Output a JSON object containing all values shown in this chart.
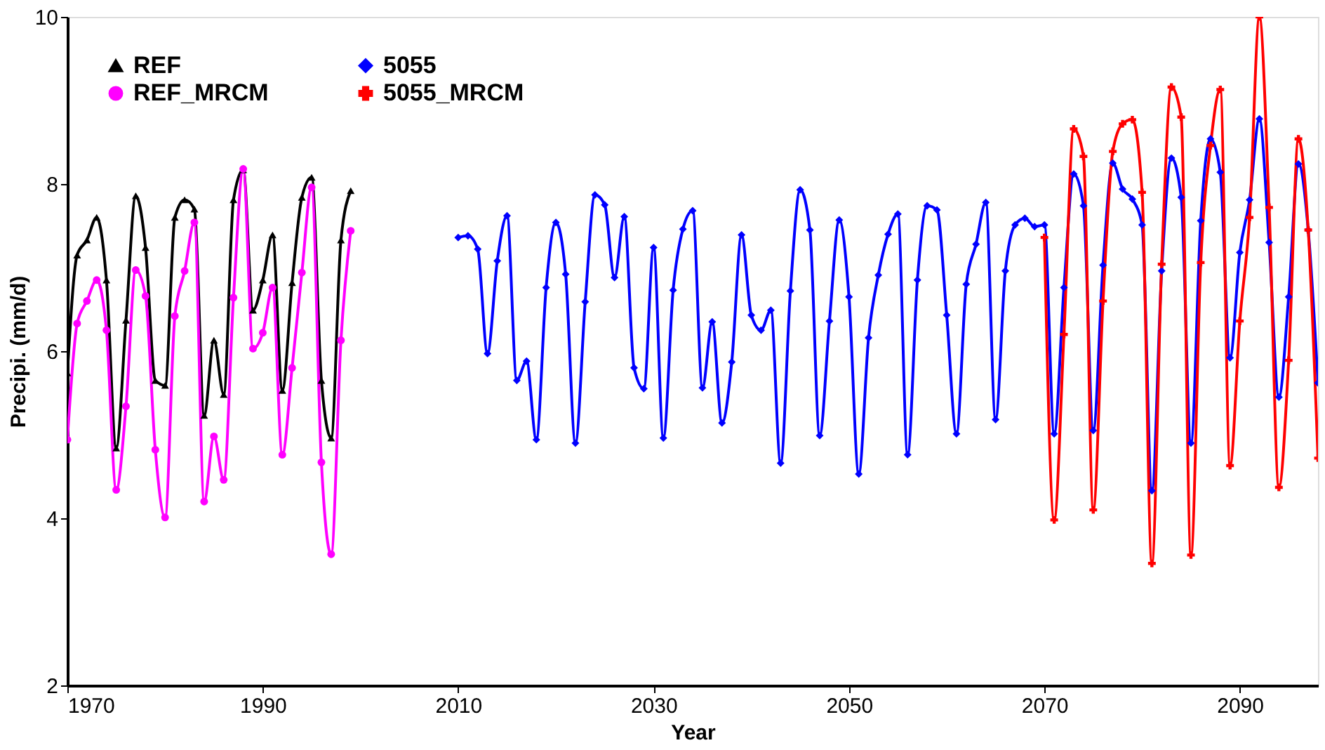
{
  "chart_data": {
    "type": "line",
    "xlabel": "Year",
    "ylabel": "Precipi. (mm/d)",
    "xlim": [
      1970,
      2098
    ],
    "xticks": [
      1970,
      1990,
      2010,
      2030,
      2050,
      2070,
      2090
    ],
    "ylim": [
      2,
      10
    ],
    "yticks": [
      2,
      4,
      6,
      8,
      10
    ],
    "grid": false,
    "legend": "top left",
    "line_style": "solid",
    "series": [
      {
        "name": "REF",
        "color": "#000000",
        "marker": "triangle",
        "x": [
          1970,
          1971,
          1972,
          1973,
          1974,
          1975,
          1976,
          1977,
          1978,
          1979,
          1980,
          1981,
          1982,
          1983,
          1984,
          1985,
          1986,
          1987,
          1988,
          1989,
          1990,
          1991,
          1992,
          1993,
          1994,
          1995,
          1996,
          1997,
          1998,
          1999
        ],
        "values": [
          5.74,
          7.15,
          7.33,
          7.6,
          6.85,
          4.84,
          6.37,
          7.86,
          7.24,
          5.65,
          5.59,
          7.6,
          7.81,
          7.7,
          5.23,
          6.13,
          5.48,
          7.81,
          8.17,
          6.49,
          6.85,
          7.39,
          5.53,
          6.82,
          7.84,
          8.08,
          5.65,
          4.96,
          7.33,
          7.92
        ]
      },
      {
        "name": "REF_MRCM",
        "color": "#ff00ff",
        "marker": "circle",
        "x": [
          1970,
          1971,
          1972,
          1973,
          1974,
          1975,
          1976,
          1977,
          1978,
          1979,
          1980,
          1981,
          1982,
          1983,
          1984,
          1985,
          1986,
          1987,
          1988,
          1989,
          1990,
          1991,
          1992,
          1993,
          1994,
          1995,
          1996,
          1997,
          1998,
          1999
        ],
        "values": [
          4.94,
          6.33,
          6.6,
          6.85,
          6.25,
          4.34,
          5.34,
          6.97,
          6.66,
          4.82,
          4.01,
          6.42,
          6.96,
          7.54,
          4.2,
          4.98,
          4.46,
          6.64,
          8.18,
          6.03,
          6.22,
          6.76,
          4.76,
          5.8,
          6.94,
          7.96,
          4.67,
          3.57,
          6.13,
          7.44
        ]
      },
      {
        "name": "5055",
        "color": "#0000ff",
        "marker": "diamond",
        "x": [
          2010,
          2011,
          2012,
          2013,
          2014,
          2015,
          2016,
          2017,
          2018,
          2019,
          2020,
          2021,
          2022,
          2023,
          2024,
          2025,
          2026,
          2027,
          2028,
          2029,
          2030,
          2031,
          2032,
          2033,
          2034,
          2035,
          2036,
          2037,
          2038,
          2039,
          2040,
          2041,
          2042,
          2043,
          2044,
          2045,
          2046,
          2047,
          2048,
          2049,
          2050,
          2051,
          2052,
          2053,
          2054,
          2055,
          2056,
          2057,
          2058,
          2059,
          2060,
          2061,
          2062,
          2063,
          2064,
          2065,
          2066,
          2067,
          2068,
          2069,
          2070,
          2071,
          2072,
          2073,
          2074,
          2075,
          2076,
          2077,
          2078,
          2079,
          2080,
          2081,
          2082,
          2083,
          2084,
          2085,
          2086,
          2087,
          2088,
          2089,
          2090,
          2091,
          2092,
          2093,
          2094,
          2095,
          2096,
          2097,
          2098
        ],
        "values": [
          7.36,
          7.38,
          7.22,
          5.97,
          7.08,
          7.62,
          5.65,
          5.88,
          4.94,
          6.76,
          7.54,
          6.92,
          4.9,
          6.59,
          7.87,
          7.75,
          6.88,
          7.61,
          5.8,
          5.55,
          7.24,
          4.96,
          6.73,
          7.46,
          7.68,
          5.56,
          6.35,
          5.14,
          5.87,
          7.39,
          6.43,
          6.25,
          6.49,
          4.66,
          6.72,
          7.93,
          7.45,
          4.99,
          6.36,
          7.57,
          6.65,
          4.53,
          6.16,
          6.91,
          7.4,
          7.64,
          4.76,
          6.85,
          7.74,
          7.69,
          6.43,
          5.01,
          6.8,
          7.28,
          7.78,
          5.18,
          6.96,
          7.51,
          7.59,
          7.49,
          7.51,
          5.01,
          6.76,
          8.12,
          7.74,
          5.05,
          7.03,
          8.25,
          7.94,
          7.82,
          7.51,
          4.33,
          6.96,
          8.31,
          7.84,
          4.9,
          7.56,
          8.54,
          8.14,
          5.92,
          7.18,
          7.81,
          8.78,
          7.3,
          5.45,
          6.65,
          8.24,
          7.45,
          5.62
        ]
      },
      {
        "name": "5055_MRCM",
        "color": "#ff0000",
        "marker": "cross",
        "x": [
          2070,
          2071,
          2072,
          2073,
          2074,
          2075,
          2076,
          2077,
          2078,
          2079,
          2080,
          2081,
          2082,
          2083,
          2084,
          2085,
          2086,
          2087,
          2088,
          2089,
          2090,
          2091,
          2092,
          2093,
          2094,
          2095,
          2096,
          2097,
          2098
        ],
        "values": [
          7.36,
          3.98,
          6.2,
          8.66,
          8.33,
          4.1,
          6.6,
          8.39,
          8.72,
          8.77,
          7.9,
          3.46,
          7.04,
          9.16,
          8.8,
          3.56,
          7.06,
          8.46,
          9.13,
          4.63,
          6.36,
          7.6,
          10,
          7.72,
          4.37,
          5.89,
          8.54,
          7.45,
          4.72
        ]
      }
    ]
  }
}
